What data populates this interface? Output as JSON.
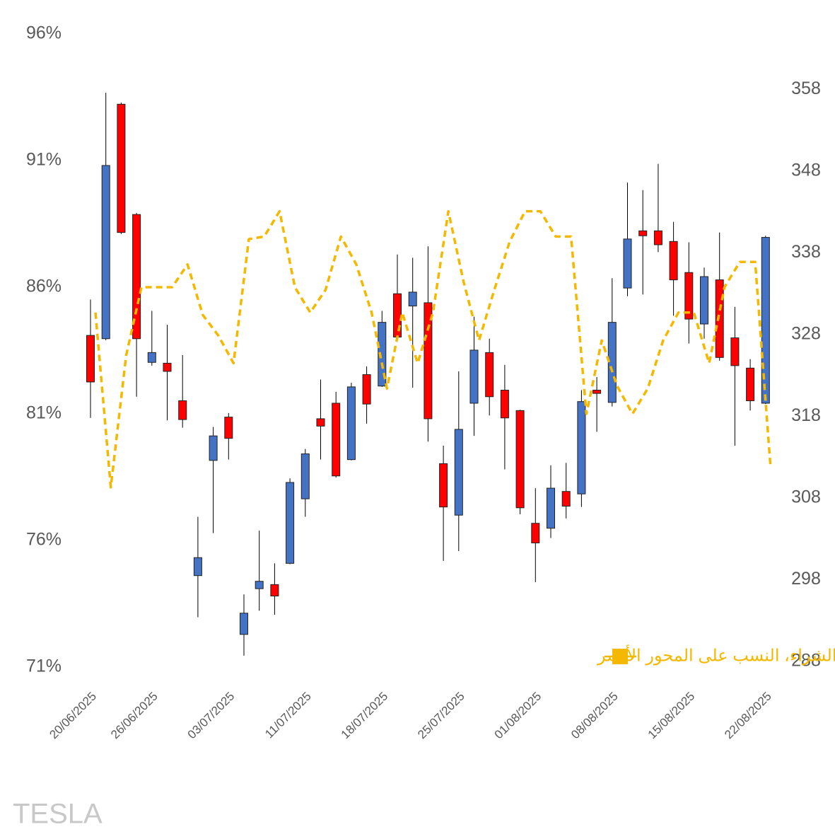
{
  "chart_data": {
    "type": "candlestick",
    "watermark": "TESLA",
    "categories": [
      "20/06/2025",
      null,
      null,
      null,
      "26/06/2025",
      null,
      null,
      null,
      null,
      "03/07/2025",
      null,
      null,
      null,
      null,
      "11/07/2025",
      null,
      null,
      null,
      null,
      "18/07/2025",
      null,
      null,
      null,
      null,
      "25/07/2025",
      null,
      null,
      null,
      null,
      "01/08/2025",
      null,
      null,
      null,
      null,
      "08/08/2025",
      null,
      null,
      null,
      null,
      "15/08/2025",
      null,
      null,
      null,
      null,
      "22/08/2025"
    ],
    "ohlc": {
      "axis": "y2",
      "up_color": "#4472c4",
      "down_color": "#ff0000",
      "open": [
        327.9,
        327.5,
        356.2,
        342.7,
        324.6,
        324.5,
        319.9,
        298.5,
        312.6,
        317.9,
        291.3,
        296.9,
        297.4,
        300.0,
        307.9,
        317.7,
        319.6,
        312.7,
        323.1,
        321.7,
        333.0,
        331.5,
        331.9,
        312.2,
        305.9,
        319.6,
        325.8,
        321.2,
        318.7,
        304.9,
        304.3,
        308.8,
        308.5,
        321.2,
        319.7,
        333.7,
        340.7,
        340.7,
        339.4,
        335.6,
        329.3,
        334.7,
        327.6,
        323.9,
        319.6
      ],
      "high": [
        332.3,
        357.6,
        356.4,
        342.9,
        330.9,
        329.2,
        325.5,
        305.7,
        316.7,
        318.4,
        296.2,
        304.0,
        300.0,
        310.4,
        314.0,
        322.5,
        321.0,
        322.1,
        324.1,
        330.9,
        337.8,
        337.4,
        338.8,
        314.4,
        323.5,
        330.2,
        327.5,
        324.3,
        318.8,
        309.2,
        312.0,
        312.3,
        321.2,
        322.8,
        334.9,
        346.6,
        345.7,
        348.9,
        341.8,
        339.3,
        336.2,
        340.5,
        331.4,
        325.0,
        340.1
      ],
      "low": [
        317.8,
        327.3,
        340.3,
        320.4,
        324.2,
        317.5,
        316.6,
        293.4,
        303.7,
        312.7,
        288.7,
        294.2,
        293.7,
        299.9,
        305.7,
        312.7,
        310.5,
        312.6,
        317.1,
        321.6,
        327.1,
        321.5,
        314.9,
        300.3,
        301.5,
        315.6,
        318.1,
        311.5,
        306.0,
        297.7,
        303.1,
        305.5,
        306.9,
        316.1,
        319.2,
        332.7,
        332.9,
        338.1,
        330.3,
        326.9,
        327.5,
        324.8,
        314.4,
        318.7,
        319.5
      ],
      "close": [
        322.2,
        348.7,
        340.5,
        327.5,
        325.8,
        323.5,
        317.6,
        300.7,
        315.6,
        315.3,
        293.9,
        297.8,
        296.0,
        309.9,
        313.4,
        316.8,
        310.7,
        321.6,
        319.5,
        329.5,
        327.7,
        333.2,
        317.7,
        306.9,
        316.4,
        326.1,
        320.4,
        317.8,
        306.8,
        302.5,
        309.2,
        307.0,
        319.8,
        320.8,
        329.5,
        339.7,
        340.1,
        339.0,
        334.7,
        329.9,
        335.1,
        325.2,
        324.2,
        319.9,
        339.9
      ]
    },
    "series": [
      {
        "name": "توجه عملاء، نسبة الشراء، النسب على المحور الأيسر",
        "color": "#f5b800",
        "axis": "y",
        "values": [
          85.0,
          78.1,
          83.3,
          86.0,
          86.0,
          86.0,
          86.9,
          84.9,
          84.1,
          83.0,
          87.9,
          88.0,
          89.0,
          86.0,
          85.0,
          85.9,
          88.0,
          86.9,
          85.0,
          82.0,
          85.0,
          83.0,
          85.0,
          89.0,
          86.2,
          83.9,
          85.9,
          87.8,
          89.0,
          89.0,
          88.0,
          88.0,
          81.0,
          83.9,
          82.1,
          81.0,
          82.0,
          83.9,
          85.0,
          85.0,
          83.0,
          86.0,
          87.0,
          87.0,
          78.9
        ]
      }
    ],
    "ylim": [
      71,
      96
    ],
    "yticks": [
      {
        "value": 71,
        "label": "71%"
      },
      {
        "value": 76,
        "label": "76%"
      },
      {
        "value": 81,
        "label": "81%"
      },
      {
        "value": 86,
        "label": "86%"
      },
      {
        "value": 91,
        "label": "91%"
      },
      {
        "value": 96,
        "label": "96%"
      }
    ],
    "y2lim": [
      287.3,
      364.8
    ],
    "y2ticks": [
      288,
      298,
      308,
      318,
      328,
      338,
      348,
      358
    ],
    "grid": false
  }
}
